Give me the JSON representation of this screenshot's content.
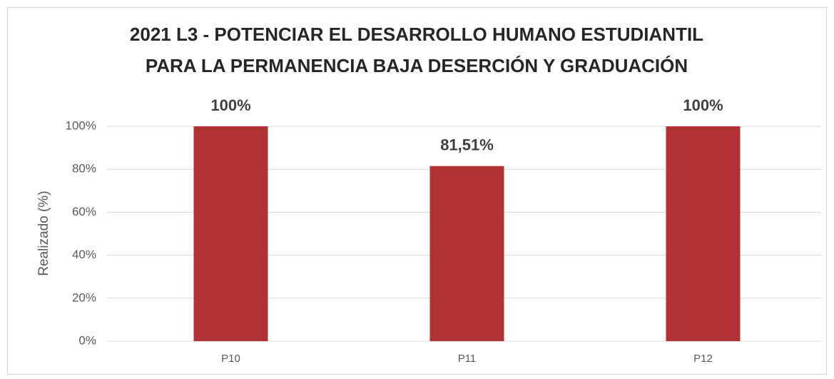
{
  "chart_data": {
    "type": "bar",
    "title": [
      "2021 L3 - POTENCIAR EL DESARROLLO HUMANO ESTUDIANTIL",
      "PARA LA PERMANENCIA BAJA DESERCIÓN Y GRADUACIÓN"
    ],
    "y_label": "Realizado (%)",
    "categories": [
      "P10",
      "P11",
      "P12"
    ],
    "values": [
      100,
      81.51,
      100
    ],
    "value_labels": [
      "100%",
      "81,51%",
      "100%"
    ],
    "color": "#b03234",
    "ylim": [
      0,
      100
    ],
    "yticks": [
      {
        "value": 0,
        "label": "0%"
      },
      {
        "value": 20,
        "label": "20%"
      },
      {
        "value": 40,
        "label": "40%"
      },
      {
        "value": 60,
        "label": "60%"
      },
      {
        "value": 80,
        "label": "80%"
      },
      {
        "value": 100,
        "label": "100%"
      }
    ],
    "grid": true
  }
}
